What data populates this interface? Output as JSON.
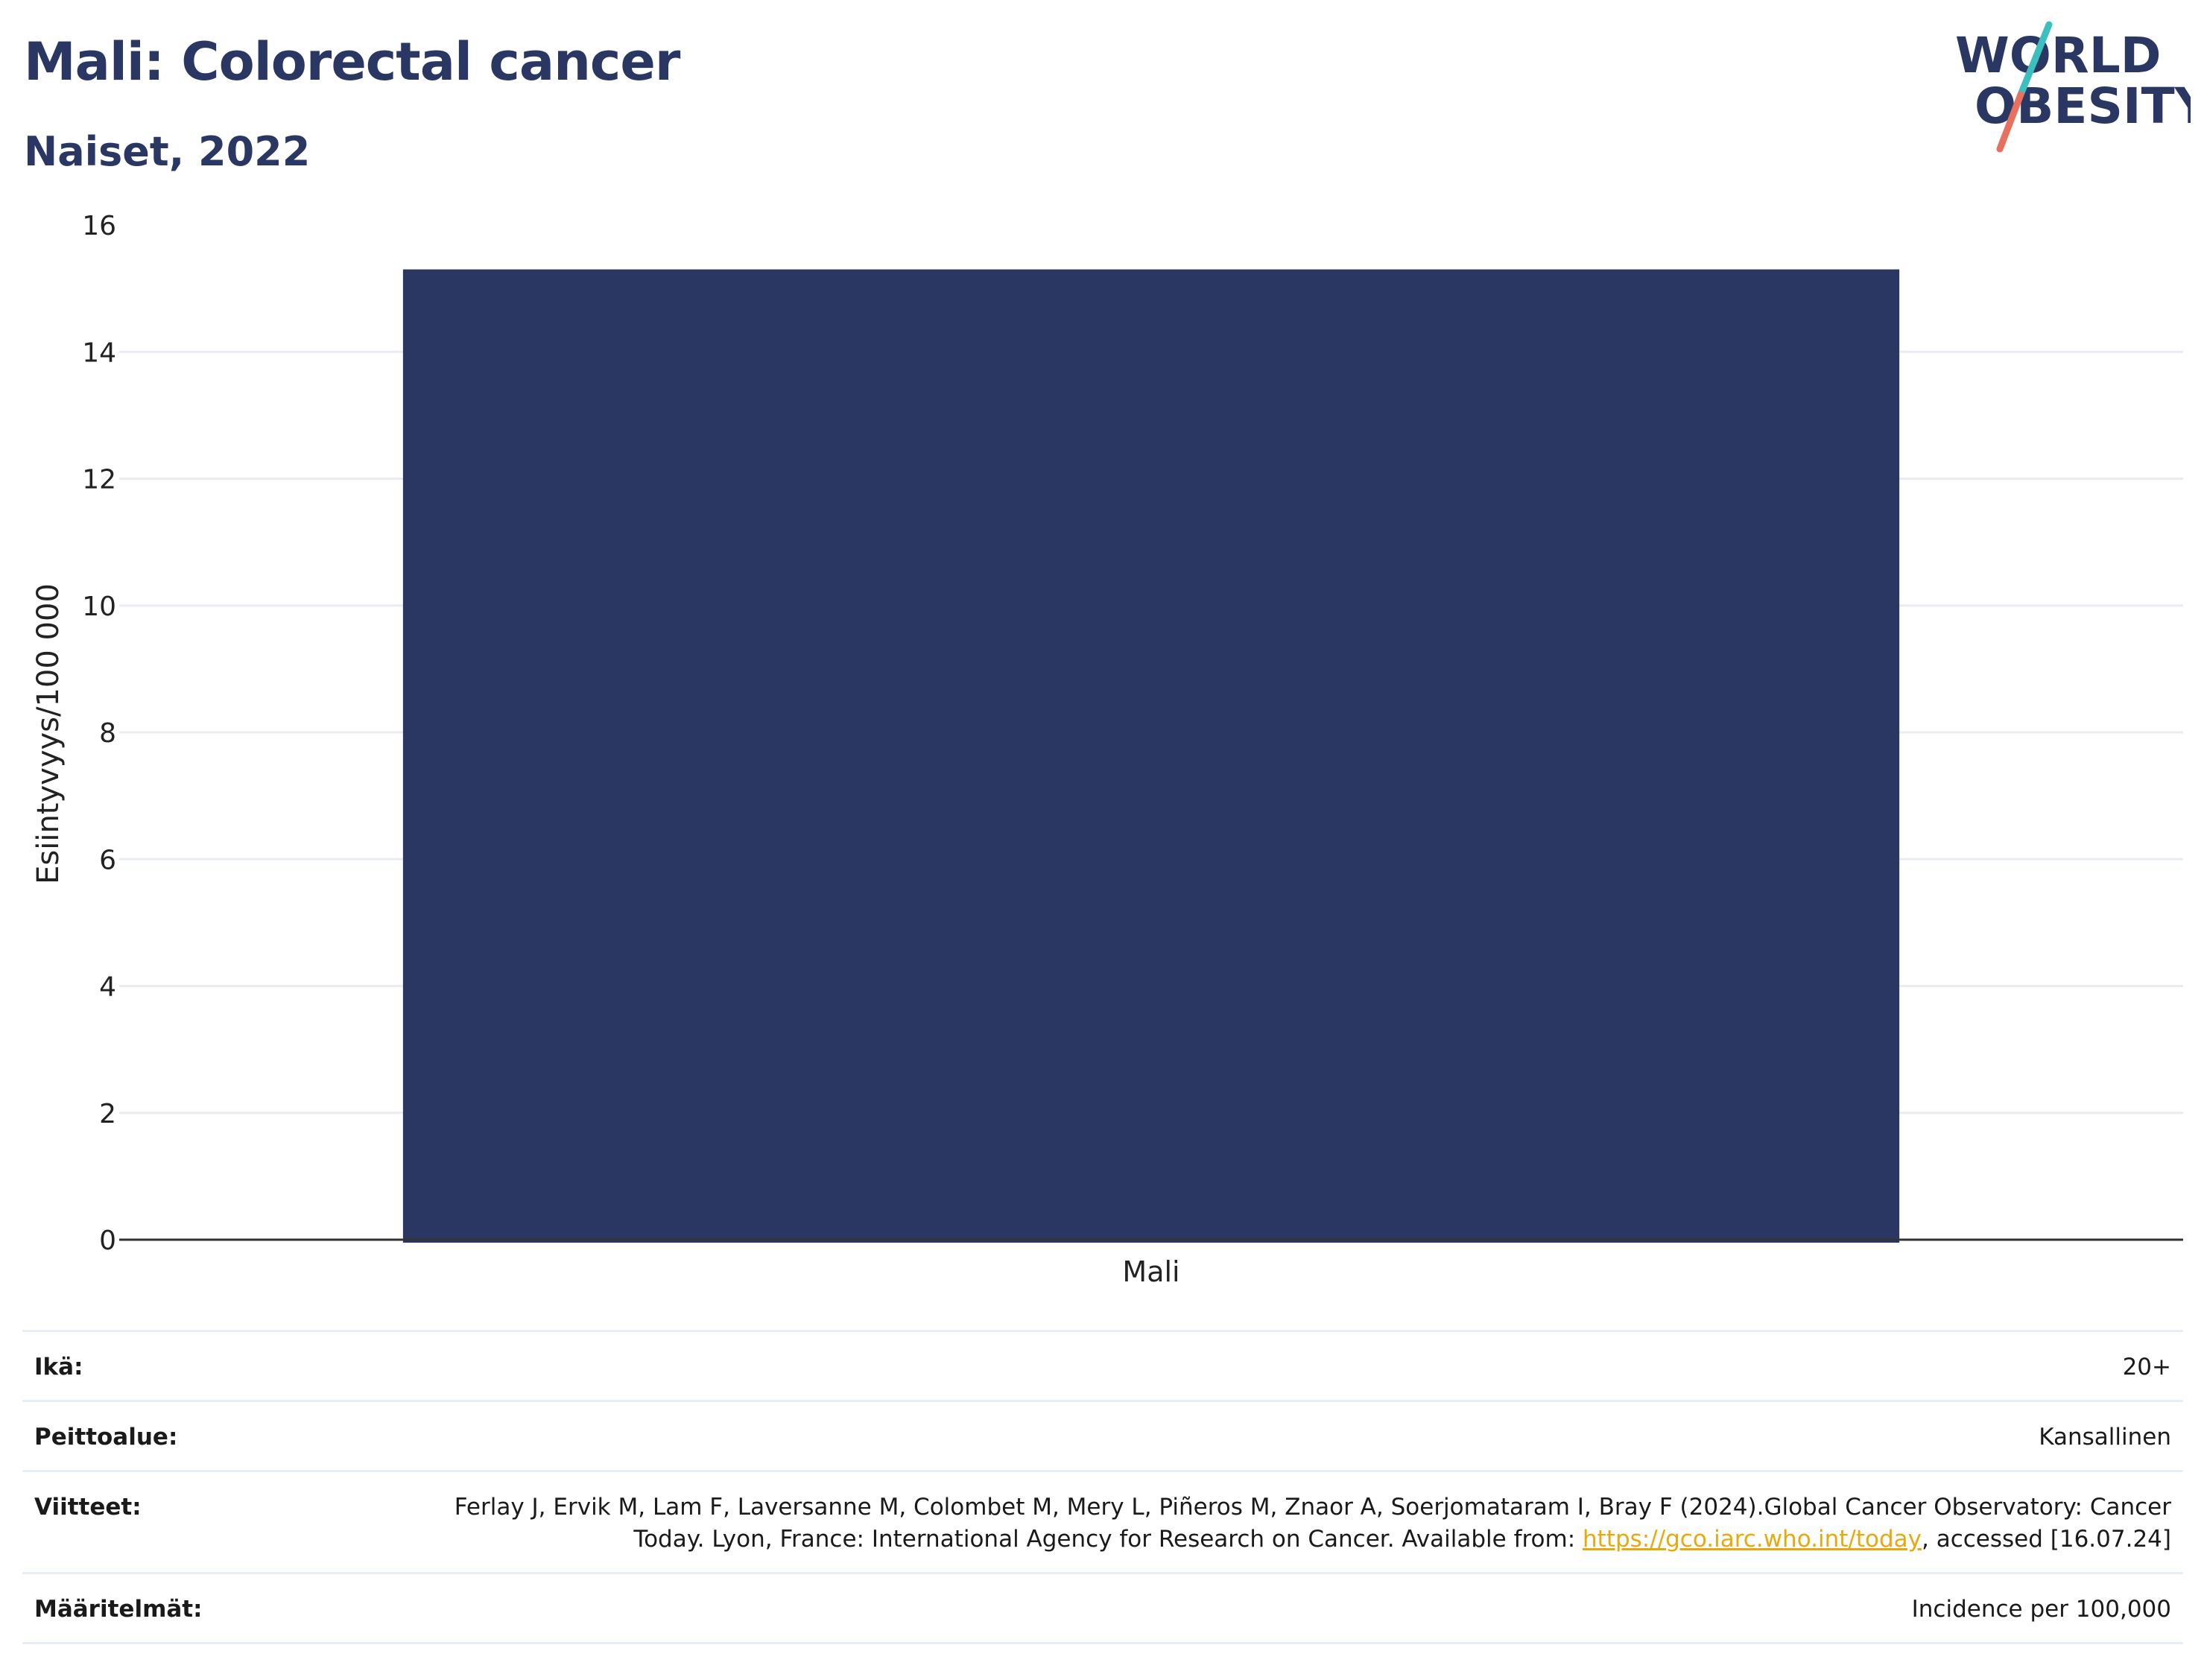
{
  "header": {
    "title": "Mali: Colorectal cancer",
    "subtitle": "Naiset, 2022"
  },
  "logo": {
    "line1": "WORLD",
    "line2": "OBESITY",
    "icon": "world-obesity-logo",
    "accent_colors": [
      "#3bbfbf",
      "#e8705f"
    ]
  },
  "chart_data": {
    "type": "bar",
    "categories": [
      "Mali"
    ],
    "values": [
      15.3
    ],
    "ylabel": "Esiintyvyys/100 000",
    "xlabel": "",
    "ylim": [
      0,
      16
    ],
    "yticks": [
      0,
      2,
      4,
      6,
      8,
      10,
      12,
      14,
      16
    ],
    "bar_color": "#2b3763",
    "grid": true
  },
  "info": {
    "rows": [
      {
        "label": "Ikä:",
        "value": "20+"
      },
      {
        "label": "Peittoalue:",
        "value": "Kansallinen"
      },
      {
        "label": "Viitteet:",
        "value_prefix": "Ferlay J, Ervik M, Lam F, Laversanne M, Colombet M, Mery L, Piñeros M, Znaor A, Soerjomataram I, Bray F (2024).Global Cancer Observatory: Cancer Today. Lyon, France: International Agency for Research on Cancer. Available from: ",
        "link_text": "https://gco.iarc.who.int/today",
        "value_suffix": ", accessed [16.07.24]"
      },
      {
        "label": "Määritelmät:",
        "value": "Incidence per 100,000"
      }
    ],
    "link_color": "#e8a90f"
  }
}
